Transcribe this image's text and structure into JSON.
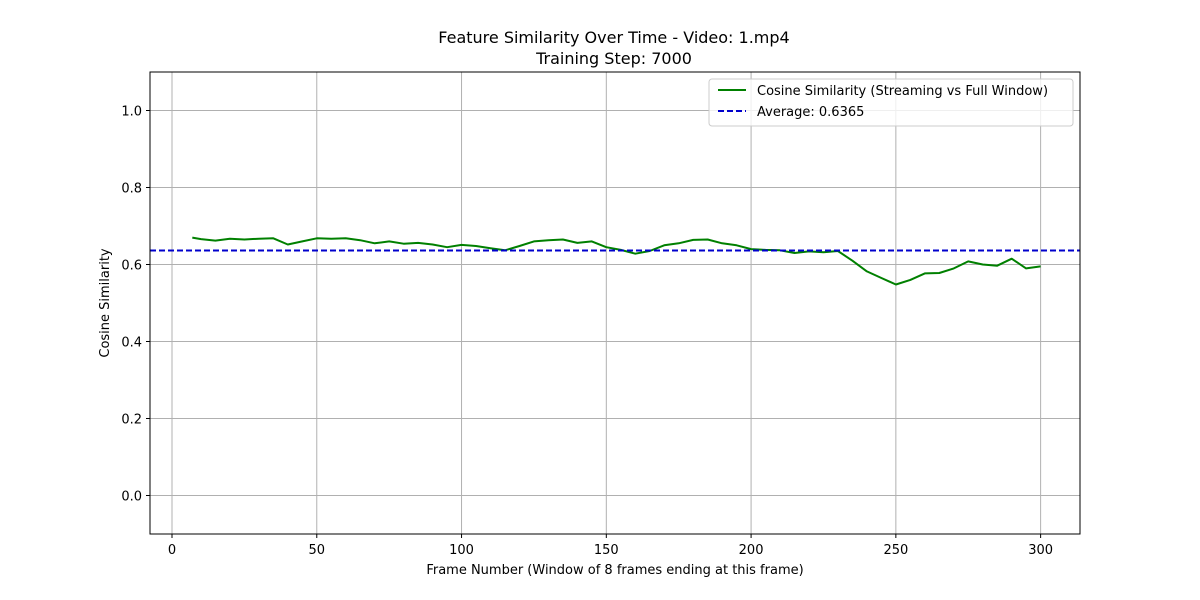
{
  "chart_data": {
    "type": "line",
    "title": "Feature Similarity Over Time - Video: 1.mp4",
    "subtitle": "Training Step: 7000",
    "xlabel": "Frame Number (Window of 8 frames ending at this frame)",
    "ylabel": "Cosine Similarity",
    "xlim": [
      -7.6,
      313.6
    ],
    "ylim": [
      -0.1,
      1.1
    ],
    "xticks": [
      "0",
      "50",
      "100",
      "150",
      "200",
      "250",
      "300"
    ],
    "yticks": [
      "0.0",
      "0.2",
      "0.4",
      "0.6",
      "0.8",
      "1.0"
    ],
    "grid": true,
    "legend_position": "top-right",
    "series": [
      {
        "name": "Cosine Similarity (Streaming vs Full Window)",
        "color": "#008000",
        "style": "solid",
        "x": [
          7,
          10,
          15,
          20,
          25,
          30,
          35,
          40,
          45,
          50,
          55,
          60,
          65,
          70,
          75,
          80,
          85,
          90,
          95,
          100,
          105,
          110,
          115,
          120,
          125,
          130,
          135,
          140,
          145,
          150,
          155,
          160,
          165,
          170,
          175,
          180,
          185,
          190,
          195,
          200,
          205,
          210,
          215,
          220,
          225,
          230,
          235,
          240,
          245,
          250,
          255,
          260,
          265,
          270,
          275,
          280,
          285,
          290,
          295,
          300
        ],
        "y": [
          0.67,
          0.666,
          0.662,
          0.667,
          0.665,
          0.667,
          0.668,
          0.652,
          0.66,
          0.668,
          0.667,
          0.668,
          0.663,
          0.655,
          0.66,
          0.654,
          0.656,
          0.652,
          0.645,
          0.651,
          0.648,
          0.642,
          0.637,
          0.648,
          0.66,
          0.663,
          0.665,
          0.656,
          0.66,
          0.645,
          0.638,
          0.628,
          0.635,
          0.65,
          0.655,
          0.664,
          0.665,
          0.655,
          0.65,
          0.64,
          0.638,
          0.637,
          0.63,
          0.634,
          0.632,
          0.635,
          0.61,
          0.582,
          0.565,
          0.548,
          0.56,
          0.577,
          0.578,
          0.59,
          0.608,
          0.6,
          0.597,
          0.615,
          0.59,
          0.595
        ]
      },
      {
        "name": "Average: 0.6365",
        "color": "#0000cc",
        "style": "dashed",
        "value": 0.6365
      }
    ]
  }
}
